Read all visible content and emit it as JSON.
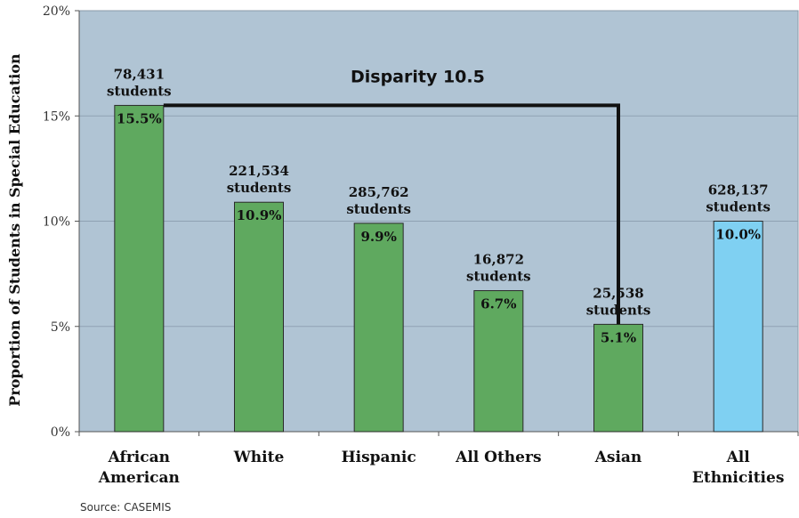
{
  "chart_data": {
    "type": "bar",
    "ylabel": "Proportion of Students in Special Education",
    "ylim": [
      0,
      20
    ],
    "yticks": [
      "0%",
      "5%",
      "10%",
      "15%",
      "20%"
    ],
    "grid": true,
    "categories": [
      [
        "African",
        "American"
      ],
      [
        "White"
      ],
      [
        "Hispanic"
      ],
      [
        "All Others"
      ],
      [
        "Asian"
      ],
      [
        "All",
        "Ethnicities"
      ]
    ],
    "values": [
      15.5,
      10.9,
      9.9,
      6.7,
      5.1,
      10.0
    ],
    "value_labels": [
      "15.5%",
      "10.9%",
      "9.9%",
      "6.7%",
      "5.1%",
      "10.0%"
    ],
    "student_counts": [
      [
        "78,431",
        "students"
      ],
      [
        "221,534",
        "students"
      ],
      [
        "285,762",
        "students"
      ],
      [
        "16,872",
        "students"
      ],
      [
        "25,538",
        "students"
      ],
      [
        "628,137",
        "students"
      ]
    ],
    "bar_colors": [
      "#5fa95f",
      "#5fa95f",
      "#5fa95f",
      "#5fa95f",
      "#5fa95f",
      "#7fd0f2"
    ],
    "plot_background": "#b0c4d4",
    "annotation": {
      "text": "Disparity 10.5",
      "from_category": 0,
      "to_category": 4
    }
  },
  "source": "Source: CASEMIS"
}
